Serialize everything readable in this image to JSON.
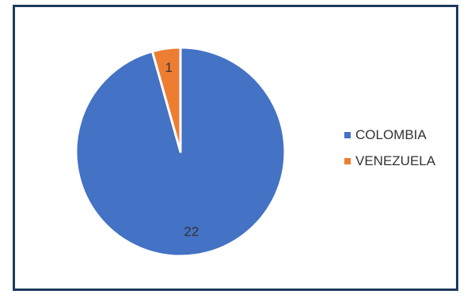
{
  "chart_data": {
    "type": "pie",
    "title": "",
    "categories": [
      "COLOMBIA",
      "VENEZUELA"
    ],
    "values": [
      22,
      1
    ],
    "colors": [
      "#4472c4",
      "#ed7d31"
    ],
    "data_labels": [
      "22",
      "1"
    ],
    "legend_position": "right"
  }
}
